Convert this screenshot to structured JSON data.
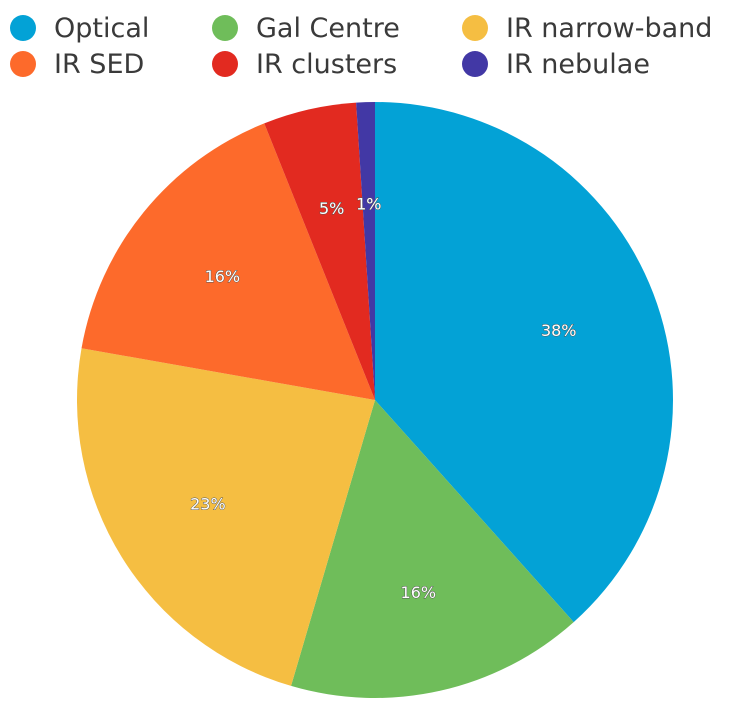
{
  "chart_data": {
    "type": "pie",
    "title": "",
    "legend": {
      "placement": "top",
      "columns": 3
    },
    "labels": [
      "Optical",
      "Gal Centre",
      "IR narrow-band",
      "IR SED",
      "IR clusters",
      "IR nebulae"
    ],
    "values": [
      38,
      16,
      23,
      16,
      5,
      1
    ],
    "value_labels": [
      "38%",
      "16%",
      "23%",
      "16%",
      "5%",
      "1%"
    ],
    "slice_order": [
      "Optical",
      "Gal Centre",
      "IR narrow-band",
      "IR SED",
      "IR clusters",
      "IR nebulae"
    ],
    "colors": [
      "#03a2d6",
      "#6fbd5a",
      "#f5be42",
      "#fd6a2b",
      "#e22a20",
      "#4238a5"
    ]
  }
}
